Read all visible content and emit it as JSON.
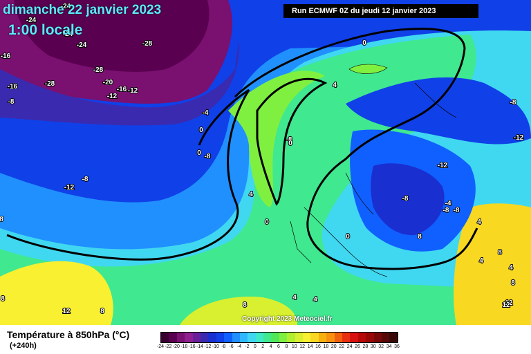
{
  "header": {
    "title": "dimanche 22 janvier 2023",
    "time": "1:00 locale",
    "run": "Run ECMWF 0Z du jeudi 12 janvier 2023"
  },
  "map": {
    "copyright": "Copyright 2023 Meteociel.fr",
    "contour_labels": [
      "-24",
      "-24",
      "-24",
      "-28",
      "-24",
      "-16",
      "-16",
      "-28",
      "-28",
      "-20",
      "-16",
      "-12",
      "-12",
      "-8",
      "-4",
      "0",
      "0",
      "-8",
      "-8",
      "-8",
      "-12",
      "-12",
      "-8",
      "-12",
      "-8",
      "-4",
      "-8",
      "-8",
      "0",
      "0",
      "4",
      "4",
      "4",
      "0",
      "0",
      "8",
      "4",
      "8",
      "8",
      "12",
      "8",
      "4",
      "4",
      "8",
      "12",
      "4",
      "8",
      "8",
      "12"
    ]
  },
  "footer": {
    "parameter": "Température à 850hPa (°C)",
    "lead_time": "(+240h)"
  },
  "legend": {
    "values": [
      "-24",
      "-22",
      "-20",
      "-18",
      "-16",
      "-14",
      "-12",
      "-10",
      "-8",
      "-6",
      "-4",
      "-2",
      "0",
      "2",
      "4",
      "6",
      "8",
      "10",
      "12",
      "14",
      "16",
      "18",
      "20",
      "22",
      "24",
      "26",
      "28",
      "30",
      "32",
      "34",
      "36"
    ],
    "colors": [
      "#3a0030",
      "#5a0050",
      "#7a1070",
      "#902090",
      "#6a1f9a",
      "#3a2ab0",
      "#1a2fd0",
      "#1040e8",
      "#1060ff",
      "#2090ff",
      "#30b8ff",
      "#40d8f0",
      "#40e8c8",
      "#40e890",
      "#50e858",
      "#80f040",
      "#b0f030",
      "#d8f030",
      "#f8f030",
      "#f8d820",
      "#f8b010",
      "#f89010",
      "#f06010",
      "#e83010",
      "#d81010",
      "#b80808",
      "#980808",
      "#780808",
      "#580808",
      "#380808"
    ]
  }
}
